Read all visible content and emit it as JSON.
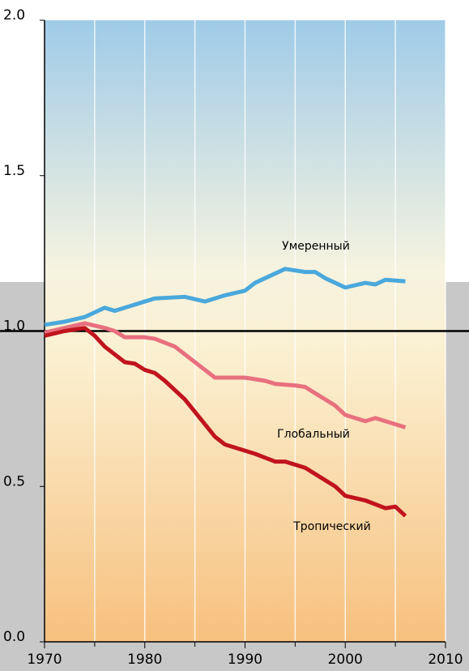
{
  "chart_data": {
    "type": "line",
    "xlim": [
      1970,
      2010
    ],
    "xticks": [
      1970,
      1980,
      1990,
      2000,
      2010
    ],
    "ylim": [
      0,
      2
    ],
    "yticks": [
      {
        "value": 0,
        "label": "0.0"
      },
      {
        "value": 0.5,
        "label": "0.5"
      },
      {
        "value": 1,
        "label": "1.0"
      },
      {
        "value": 1.5,
        "label": "1.5"
      },
      {
        "value": 2,
        "label": "2.0"
      }
    ],
    "reference_line": 1,
    "grid": true,
    "series": [
      {
        "name": "Умеренный",
        "color": "#4aa8dc",
        "x": [
          1970,
          1972,
          1974,
          1976,
          1977,
          1978,
          1980,
          1981,
          1984,
          1986,
          1988,
          1990,
          1991,
          1993,
          1994,
          1996,
          1997,
          1998,
          2000,
          2002,
          2003,
          2004,
          2006
        ],
        "values": [
          1.02,
          1.03,
          1.045,
          1.075,
          1.065,
          1.075,
          1.095,
          1.105,
          1.11,
          1.095,
          1.115,
          1.13,
          1.155,
          1.185,
          1.2,
          1.19,
          1.19,
          1.17,
          1.14,
          1.155,
          1.15,
          1.165,
          1.16
        ]
      },
      {
        "name": "Глобальный",
        "color": "#e8707e",
        "x": [
          1970,
          1972,
          1974,
          1976,
          1977,
          1978,
          1980,
          1981,
          1983,
          1985,
          1987,
          1990,
          1992,
          1993,
          1995,
          1996,
          1997,
          1999,
          2000,
          2002,
          2003,
          2006
        ],
        "values": [
          0.995,
          1.01,
          1.025,
          1.01,
          1.0,
          0.98,
          0.98,
          0.975,
          0.95,
          0.9,
          0.85,
          0.85,
          0.84,
          0.83,
          0.825,
          0.82,
          0.8,
          0.76,
          0.73,
          0.71,
          0.72,
          0.69
        ]
      },
      {
        "name": "Тропический",
        "color": "#c0141e",
        "x": [
          1970,
          1972,
          1974,
          1975,
          1976,
          1978,
          1979,
          1980,
          1981,
          1982,
          1984,
          1987,
          1988,
          1991,
          1993,
          1994,
          1996,
          1999,
          2000,
          2002,
          2004,
          2005,
          2006
        ],
        "values": [
          0.985,
          1.0,
          1.01,
          0.985,
          0.95,
          0.9,
          0.895,
          0.875,
          0.865,
          0.84,
          0.78,
          0.66,
          0.635,
          0.605,
          0.58,
          0.58,
          0.56,
          0.5,
          0.47,
          0.455,
          0.43,
          0.435,
          0.405
        ]
      }
    ]
  }
}
